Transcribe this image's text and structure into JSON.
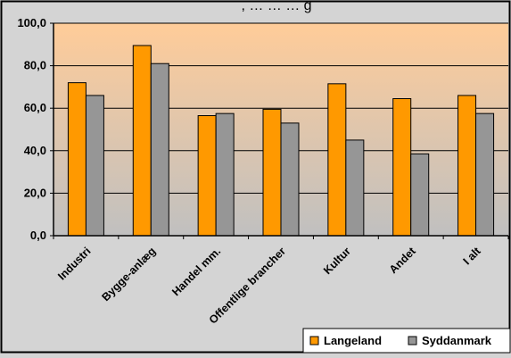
{
  "title_fragment": ", …   …   … g",
  "chart_data": {
    "type": "bar",
    "categories": [
      "Industri",
      "Bygge-anlæg",
      "Handel mm.",
      "Offentlige brancher",
      "Kultur",
      "Andet",
      "I alt"
    ],
    "series": [
      {
        "name": "Langeland",
        "color": "#ff9900",
        "values": [
          72.0,
          89.5,
          56.5,
          59.5,
          71.5,
          64.5,
          66.0
        ]
      },
      {
        "name": "Syddanmark",
        "color": "#969696",
        "values": [
          66.0,
          81.0,
          57.5,
          53.0,
          45.0,
          38.5,
          57.5
        ]
      }
    ],
    "ylim": [
      0,
      100
    ],
    "yticks": [
      0,
      20,
      40,
      60,
      80,
      100
    ],
    "ytick_labels": [
      "0,0",
      "20,0",
      "40,0",
      "60,0",
      "80,0",
      "100,0"
    ],
    "grid": true,
    "legend_position": "bottom-right",
    "plot_background": [
      "#ffcc99",
      "#c0c0c0"
    ]
  }
}
